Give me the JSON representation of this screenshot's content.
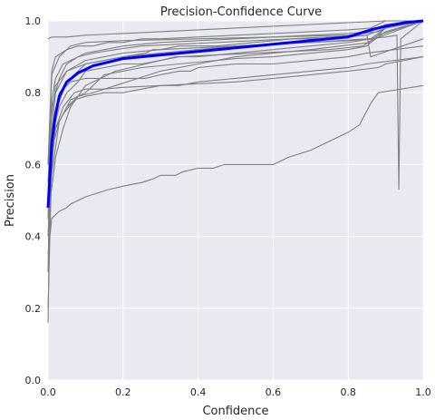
{
  "chart_data": {
    "type": "line",
    "title": "Precision-Confidence Curve",
    "xlabel": "Confidence",
    "ylabel": "Precision",
    "xlim": [
      0.0,
      1.0
    ],
    "ylim": [
      0.0,
      1.0
    ],
    "xticks": [
      "0.0",
      "0.2",
      "0.4",
      "0.6",
      "0.8",
      "1.0"
    ],
    "yticks": [
      "0.0",
      "0.2",
      "0.4",
      "0.6",
      "0.8",
      "1.0"
    ],
    "grid": true,
    "colors": {
      "plot_background": "#e9e9f2",
      "grid": "#ffffff",
      "class_curves": "#808080",
      "mean_curve": "#0000ff"
    },
    "mean_curve": {
      "x": [
        0.0,
        0.01,
        0.02,
        0.03,
        0.05,
        0.08,
        0.12,
        0.2,
        0.3,
        0.4,
        0.5,
        0.6,
        0.7,
        0.8,
        0.86,
        0.9,
        0.95,
        1.0
      ],
      "y": [
        0.48,
        0.66,
        0.74,
        0.79,
        0.83,
        0.855,
        0.875,
        0.895,
        0.905,
        0.915,
        0.925,
        0.935,
        0.945,
        0.955,
        0.975,
        0.985,
        0.995,
        1.0
      ]
    },
    "series": [
      {
        "x": [
          0.0,
          0.01,
          0.02,
          0.05,
          0.1,
          0.2,
          0.3,
          0.4,
          0.5,
          0.6,
          0.7,
          0.8,
          0.9,
          1.0
        ],
        "y": [
          0.95,
          0.955,
          0.955,
          0.955,
          0.96,
          0.965,
          0.97,
          0.975,
          0.98,
          0.985,
          0.99,
          0.995,
          1.0,
          1.0
        ]
      },
      {
        "x": [
          0.0,
          0.01,
          0.03,
          0.06,
          0.1,
          0.2,
          0.4,
          0.6,
          0.8,
          0.88,
          0.92,
          1.0
        ],
        "y": [
          0.6,
          0.85,
          0.9,
          0.93,
          0.94,
          0.945,
          0.95,
          0.955,
          0.96,
          0.97,
          0.99,
          1.0
        ]
      },
      {
        "x": [
          0.0,
          0.005,
          0.02,
          0.05,
          0.1,
          0.2,
          0.3,
          0.5,
          0.7,
          0.85,
          0.9,
          0.93,
          0.935,
          0.94,
          1.0
        ],
        "y": [
          0.45,
          0.7,
          0.82,
          0.86,
          0.88,
          0.9,
          0.91,
          0.93,
          0.94,
          0.95,
          0.955,
          0.96,
          0.53,
          0.95,
          1.0
        ]
      },
      {
        "x": [
          0.0,
          0.01,
          0.02,
          0.03,
          0.05,
          0.06,
          0.08,
          0.1,
          0.13,
          0.16,
          0.2,
          0.25,
          0.28,
          0.3,
          0.34,
          0.36,
          0.4,
          0.44,
          0.47,
          0.5,
          0.56,
          0.6,
          0.64,
          0.7,
          0.72,
          0.76,
          0.8,
          0.83,
          0.85,
          0.86,
          0.88,
          1.0
        ],
        "y": [
          0.35,
          0.45,
          0.46,
          0.47,
          0.48,
          0.49,
          0.5,
          0.51,
          0.52,
          0.53,
          0.54,
          0.55,
          0.56,
          0.57,
          0.57,
          0.58,
          0.59,
          0.59,
          0.6,
          0.6,
          0.6,
          0.6,
          0.62,
          0.64,
          0.65,
          0.67,
          0.69,
          0.71,
          0.75,
          0.77,
          0.8,
          0.82
        ]
      },
      {
        "x": [
          0.0,
          0.02,
          0.04,
          0.07,
          0.1,
          0.15,
          0.2,
          0.3,
          0.4,
          0.5,
          0.6,
          0.7,
          0.8,
          0.88,
          0.9,
          1.0
        ],
        "y": [
          0.5,
          0.7,
          0.76,
          0.8,
          0.81,
          0.81,
          0.815,
          0.82,
          0.825,
          0.83,
          0.84,
          0.85,
          0.86,
          0.87,
          0.88,
          0.9
        ]
      },
      {
        "x": [
          0.0,
          0.01,
          0.02,
          0.04,
          0.08,
          0.12,
          0.18,
          0.25,
          0.35,
          0.45,
          0.55,
          0.65,
          0.75,
          0.85,
          0.9,
          1.0
        ],
        "y": [
          0.55,
          0.78,
          0.84,
          0.88,
          0.9,
          0.91,
          0.92,
          0.93,
          0.935,
          0.94,
          0.945,
          0.95,
          0.955,
          0.96,
          0.98,
          1.0
        ]
      },
      {
        "x": [
          0.0,
          0.01,
          0.03,
          0.05,
          0.08,
          0.1,
          0.15,
          0.2,
          0.25,
          0.3,
          0.35,
          0.45,
          0.55,
          0.65,
          0.75,
          0.84,
          0.88,
          1.0
        ],
        "y": [
          0.4,
          0.68,
          0.76,
          0.8,
          0.83,
          0.86,
          0.87,
          0.88,
          0.88,
          0.89,
          0.9,
          0.905,
          0.91,
          0.915,
          0.92,
          0.93,
          0.96,
          1.0
        ]
      },
      {
        "x": [
          0.0,
          0.005,
          0.02,
          0.04,
          0.07,
          0.1,
          0.15,
          0.2,
          0.25,
          0.3,
          0.35,
          0.4,
          0.5,
          0.6,
          0.7,
          0.8,
          0.85,
          1.0
        ],
        "y": [
          0.3,
          0.62,
          0.7,
          0.74,
          0.78,
          0.79,
          0.8,
          0.8,
          0.81,
          0.82,
          0.82,
          0.83,
          0.84,
          0.85,
          0.86,
          0.87,
          0.88,
          0.9
        ]
      },
      {
        "x": [
          0.0,
          0.02,
          0.05,
          0.1,
          0.2,
          0.3,
          0.4,
          0.5,
          0.6,
          0.7,
          0.8,
          0.87,
          0.9,
          1.0
        ],
        "y": [
          0.6,
          0.8,
          0.86,
          0.89,
          0.91,
          0.92,
          0.925,
          0.93,
          0.935,
          0.94,
          0.945,
          0.95,
          0.98,
          1.0
        ]
      },
      {
        "x": [
          0.0,
          0.03,
          0.06,
          0.1,
          0.15,
          0.2,
          0.25,
          0.3,
          0.35,
          0.4,
          0.45,
          0.5,
          0.6,
          0.7,
          0.8,
          0.85,
          0.87,
          1.0
        ],
        "y": [
          0.5,
          0.72,
          0.78,
          0.8,
          0.85,
          0.86,
          0.87,
          0.875,
          0.88,
          0.885,
          0.89,
          0.895,
          0.9,
          0.91,
          0.92,
          0.93,
          0.95,
          1.0
        ]
      },
      {
        "x": [
          0.0,
          0.01,
          0.03,
          0.06,
          0.1,
          0.14,
          0.2,
          0.26,
          0.3,
          0.35,
          0.38,
          0.4,
          0.5,
          0.6,
          0.7,
          0.8,
          0.85,
          1.0
        ],
        "y": [
          0.48,
          0.7,
          0.8,
          0.83,
          0.84,
          0.84,
          0.84,
          0.84,
          0.85,
          0.86,
          0.86,
          0.87,
          0.88,
          0.88,
          0.89,
          0.9,
          0.91,
          0.93
        ]
      },
      {
        "x": [
          0.0,
          0.01,
          0.02,
          0.05,
          0.08,
          0.1,
          0.15,
          0.2,
          0.26,
          0.28,
          0.3,
          0.35,
          0.45,
          0.55,
          0.65,
          0.75,
          0.85,
          0.86,
          1.0
        ],
        "y": [
          0.2,
          0.6,
          0.75,
          0.83,
          0.86,
          0.88,
          0.89,
          0.9,
          0.91,
          0.92,
          0.92,
          0.93,
          0.93,
          0.94,
          0.95,
          0.95,
          0.96,
          0.9,
          0.95
        ]
      },
      {
        "x": [
          0.0,
          0.005,
          0.015,
          0.03,
          0.05,
          0.08,
          0.12,
          0.18,
          0.24,
          0.3,
          0.4,
          0.5,
          0.6,
          0.7,
          0.78,
          0.86,
          0.9,
          1.0
        ],
        "y": [
          0.16,
          0.5,
          0.66,
          0.72,
          0.76,
          0.79,
          0.8,
          0.82,
          0.84,
          0.86,
          0.88,
          0.9,
          0.91,
          0.92,
          0.93,
          0.94,
          0.97,
          1.0
        ]
      },
      {
        "x": [
          0.0,
          0.02,
          0.04,
          0.06,
          0.1,
          0.14,
          0.18,
          0.22,
          0.26,
          0.3,
          0.34,
          0.4,
          0.5,
          0.6,
          0.7,
          0.8,
          0.86,
          0.9,
          1.0
        ],
        "y": [
          0.45,
          0.62,
          0.7,
          0.76,
          0.82,
          0.84,
          0.86,
          0.87,
          0.88,
          0.89,
          0.9,
          0.9,
          0.91,
          0.92,
          0.93,
          0.94,
          0.95,
          0.98,
          1.0
        ]
      },
      {
        "x": [
          0.0,
          0.01,
          0.03,
          0.05,
          0.08,
          0.1,
          0.15,
          0.2,
          0.3,
          0.4,
          0.5,
          0.6,
          0.7,
          0.8,
          0.86,
          0.9,
          1.0
        ],
        "y": [
          0.52,
          0.76,
          0.84,
          0.88,
          0.9,
          0.91,
          0.92,
          0.93,
          0.94,
          0.945,
          0.95,
          0.955,
          0.96,
          0.965,
          0.97,
          0.99,
          1.0
        ]
      },
      {
        "x": [
          0.0,
          0.01,
          0.02,
          0.05,
          0.08,
          0.12,
          0.16,
          0.2,
          0.25,
          0.3,
          0.4,
          0.5,
          0.6,
          0.7,
          0.8,
          0.86,
          0.9,
          1.0
        ],
        "y": [
          0.6,
          0.86,
          0.9,
          0.92,
          0.93,
          0.93,
          0.94,
          0.94,
          0.95,
          0.95,
          0.955,
          0.96,
          0.965,
          0.97,
          0.975,
          0.98,
          1.0,
          1.0
        ]
      }
    ]
  }
}
